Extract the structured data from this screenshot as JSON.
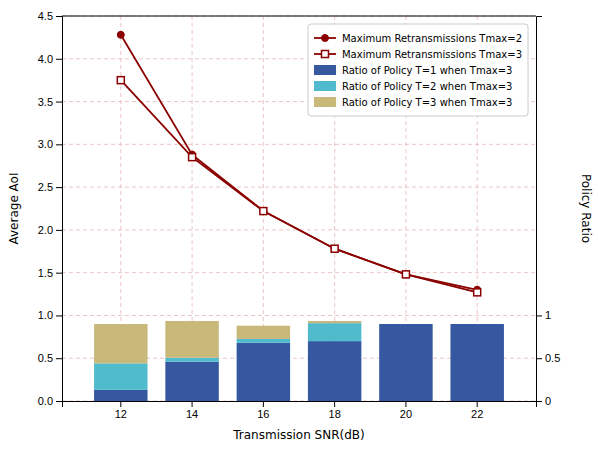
{
  "chart_data": {
    "type": "bar",
    "x_label": "Transmission SNR(dB)",
    "y_label": "Average AoI",
    "y2_label": "Policy Ratio",
    "categories": [
      "12",
      "14",
      "16",
      "18",
      "20",
      "22"
    ],
    "ylim": [
      0,
      4.5
    ],
    "yticks": [
      {
        "value": 0,
        "label": "0.0"
      },
      0.5,
      {
        "value": 1,
        "label": "1.0"
      },
      1.5,
      {
        "value": 2,
        "label": "2.0"
      },
      2.5,
      {
        "value": 3,
        "label": "3.0"
      },
      3.5,
      {
        "value": 4,
        "label": "4.0"
      },
      4.5
    ],
    "y2lim": [
      0,
      4.5
    ],
    "y2ticks": [
      0,
      0.5,
      1
    ],
    "stacked": true,
    "grid": true,
    "legend": "upper right",
    "series": [
      {
        "name": "Maximum Retransmissions Tmax=2",
        "type": "line",
        "color": "#8B0000",
        "marker": "circle",
        "values": [
          4.28,
          2.88,
          2.22,
          1.78,
          1.48,
          1.3
        ]
      },
      {
        "name": "Maximum Retransmissions Tmax=3",
        "type": "line",
        "color": "#8B0000",
        "marker": "square",
        "values": [
          3.75,
          2.85,
          2.22,
          1.78,
          1.48,
          1.27
        ]
      },
      {
        "name": "Ratio of Policy T=1 when Tmax=3",
        "type": "bar",
        "axis": "y2",
        "color": "#3558A0",
        "values": [
          0.13,
          0.46,
          0.68,
          0.7,
          0.9,
          0.9
        ]
      },
      {
        "name": "Ratio of Policy T=2 when Tmax=3",
        "type": "bar",
        "axis": "y2",
        "color": "#4FBBCC",
        "values": [
          0.31,
          0.045,
          0.045,
          0.21,
          0.0,
          0.0
        ]
      },
      {
        "name": "Ratio of Policy T=3 when Tmax=3",
        "type": "bar",
        "axis": "y2",
        "color": "#C8B97A",
        "values": [
          0.46,
          0.43,
          0.155,
          0.025,
          0.0,
          0.0
        ]
      }
    ]
  }
}
